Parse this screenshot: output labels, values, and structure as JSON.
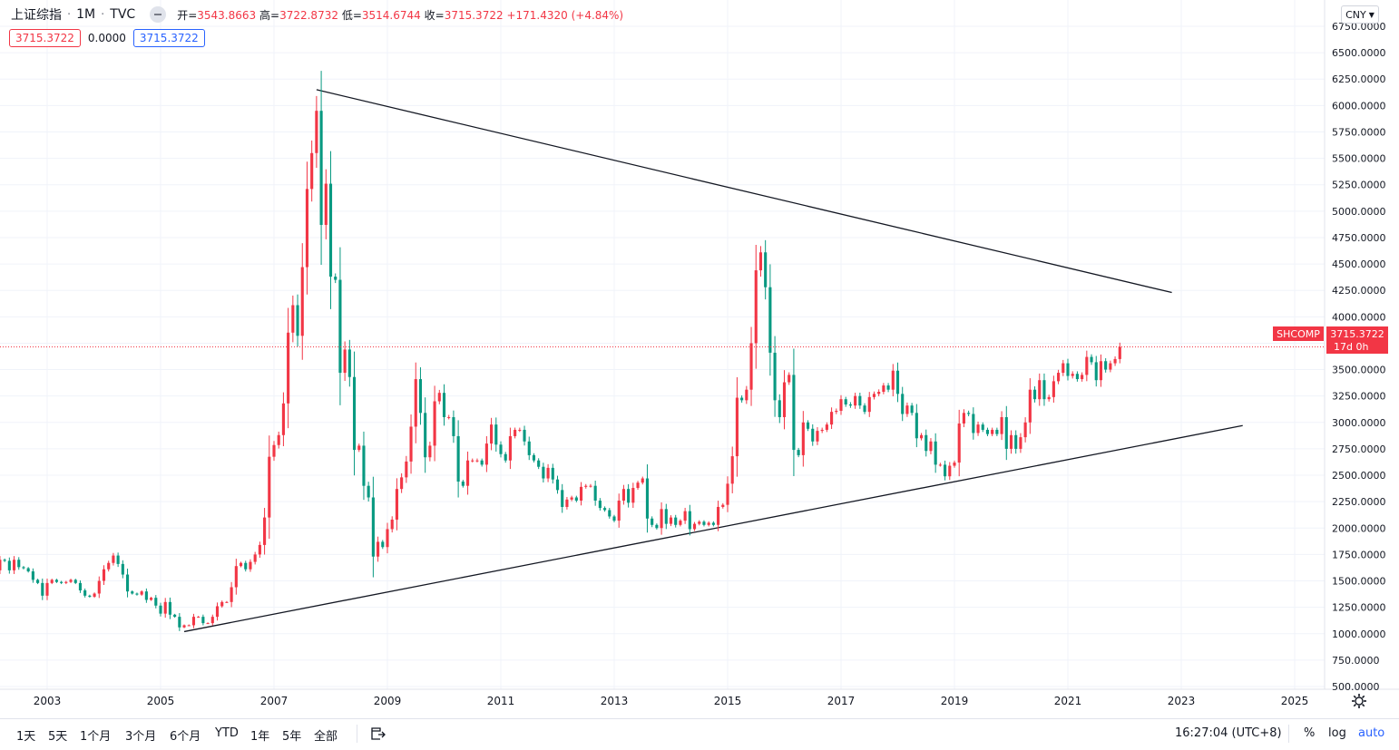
{
  "header": {
    "symbol": "上证综指",
    "interval": "1M",
    "exchange": "TVC",
    "open_label": "开",
    "open": "3543.8663",
    "high_label": "高",
    "high": "3722.8732",
    "low_label": "低",
    "low": "3514.6744",
    "close_label": "收",
    "close": "3715.3722",
    "change": "+171.4320",
    "change_pct": "(+4.84%)"
  },
  "badges": {
    "left": "3715.3722",
    "mid": "0.0000",
    "right": "3715.3722"
  },
  "currency": "CNY",
  "price_tag": {
    "symbol": "SHCOMP",
    "price": "3715.3722",
    "countdown": "17d 0h"
  },
  "bottom_bar": {
    "timeframes": [
      "1天",
      "5天",
      "1个月",
      "3个月",
      "6个月",
      "YTD",
      "1年",
      "5年",
      "全部"
    ],
    "clock": "16:27:04 (UTC+8)",
    "percent": "%",
    "log": "log",
    "auto": "auto"
  },
  "colors": {
    "up": "#f23645",
    "down": "#089981",
    "accent": "#2962ff",
    "trendline": "#131722"
  },
  "chart_data": {
    "type": "candlestick",
    "title": "",
    "xlabel": "",
    "ylabel": "",
    "x_ticks": [
      "2003",
      "2005",
      "2007",
      "2009",
      "2011",
      "2013",
      "2015",
      "2017",
      "2019",
      "2021",
      "2023",
      "2025"
    ],
    "y_ticks": [
      "500.0000",
      "750.0000",
      "1000.0000",
      "1250.0000",
      "1500.0000",
      "1750.0000",
      "2000.0000",
      "2250.0000",
      "2500.0000",
      "2750.0000",
      "3000.0000",
      "3250.0000",
      "3500.0000",
      "3750.0000",
      "4000.0000",
      "4250.0000",
      "4500.0000",
      "4750.0000",
      "5000.0000",
      "5250.0000",
      "5500.0000",
      "5750.0000",
      "6000.0000",
      "6250.0000",
      "6500.0000",
      "6750.0000"
    ],
    "ylim": [
      500,
      6750
    ],
    "xlim": [
      "2002-01",
      "2025-12"
    ],
    "last_price_line": 3715.3722,
    "grid": true,
    "trendlines": [
      {
        "from": [
          "2007-10",
          6150
        ],
        "to": [
          "2022-11",
          4230
        ]
      },
      {
        "from": [
          "2005-06",
          1020
        ],
        "to": [
          "2024-02",
          2970
        ]
      }
    ],
    "series": [
      {
        "kind": "monthly_close_approx",
        "start": "2002-01",
        "close": [
          1580,
          1600,
          1700,
          1690,
          1600,
          1700,
          1630,
          1620,
          1590,
          1510,
          1480,
          1360,
          1480,
          1510,
          1490,
          1480,
          1490,
          1510,
          1480,
          1410,
          1360,
          1350,
          1380,
          1500,
          1610,
          1670,
          1740,
          1660,
          1560,
          1400,
          1380,
          1370,
          1400,
          1320,
          1340,
          1266,
          1190,
          1300,
          1180,
          1160,
          1060,
          1080,
          1080,
          1160,
          1160,
          1100,
          1100,
          1160,
          1260,
          1300,
          1300,
          1440,
          1640,
          1670,
          1610,
          1680,
          1750,
          1840,
          2100,
          2675,
          2786,
          2880,
          3180,
          3850,
          4110,
          3820,
          4470,
          5210,
          5550,
          5950,
          4870,
          5260,
          4380,
          4350,
          3470,
          3690,
          3430,
          2740,
          2780,
          2400,
          2290,
          1730,
          1870,
          1820,
          1990,
          2080,
          2370,
          2480,
          2630,
          2960,
          3410,
          3090,
          2670,
          2780,
          3200,
          3280,
          3050,
          3050,
          2870,
          2440,
          2400,
          2640,
          2640,
          2640,
          2600,
          2800,
          2980,
          2790,
          2700,
          2640,
          2870,
          2930,
          2930,
          2820,
          2690,
          2640,
          2580,
          2470,
          2570,
          2460,
          2360,
          2200,
          2270,
          2290,
          2260,
          2390,
          2400,
          2400,
          2260,
          2190,
          2170,
          2110,
          2070,
          2260,
          2370,
          2240,
          2380,
          2430,
          2470,
          2090,
          2030,
          2000,
          2180,
          2040,
          2100,
          2030,
          2070,
          2160,
          1990,
          2040,
          2060,
          2030,
          2050,
          2030,
          2200,
          2220,
          2420,
          2680,
          3234,
          3210,
          3310,
          3750,
          4440,
          4610,
          4280,
          3660,
          3210,
          3050,
          3380,
          3450,
          2740,
          2690,
          3000,
          2940,
          2820,
          2920,
          2930,
          2980,
          3100,
          3110,
          3220,
          3170,
          3160,
          3250,
          3160,
          3100,
          3240,
          3270,
          3290,
          3350,
          3310,
          3490,
          3270,
          3080,
          3160,
          3090,
          2850,
          2880,
          2730,
          2820,
          2600,
          2600,
          2490,
          2590,
          2620,
          2990,
          3090,
          3080,
          2900,
          2980,
          2930,
          2890,
          2930,
          2890,
          3050,
          2750,
          2880,
          2750,
          2860,
          3000,
          3310,
          3220,
          3400,
          3220,
          3240,
          3390,
          3470,
          3560,
          3440,
          3460,
          3410,
          3450,
          3620,
          3570,
          3400,
          3580,
          3500,
          3560,
          3600,
          3715
        ]
      }
    ]
  }
}
